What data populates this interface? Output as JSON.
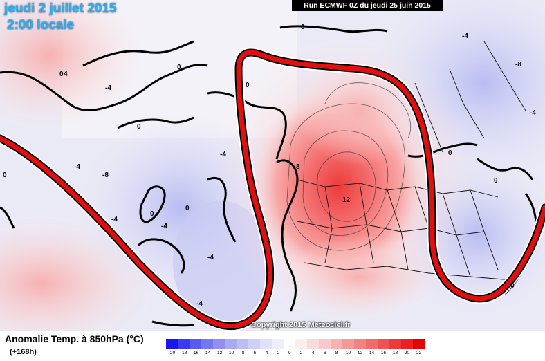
{
  "header": {
    "date_line": "jeudi 2 juillet 2015",
    "time_line": "2:00 locale",
    "run_info": "Run ECMWF 0Z du jeudi 25 juin 2015"
  },
  "map": {
    "contour_labels": [
      {
        "text": "0"
      },
      {
        "text": "0"
      },
      {
        "text": "0"
      },
      {
        "text": "0"
      },
      {
        "text": "0"
      },
      {
        "text": "0"
      },
      {
        "text": "0"
      },
      {
        "text": "-4"
      },
      {
        "text": "-4"
      },
      {
        "text": "-8"
      },
      {
        "text": "-4"
      },
      {
        "text": "-4"
      },
      {
        "text": "-4"
      },
      {
        "text": "-4"
      },
      {
        "text": "-4"
      },
      {
        "text": "8"
      },
      {
        "text": "12"
      },
      {
        "text": "-4"
      },
      {
        "text": "-8"
      },
      {
        "text": "0"
      },
      {
        "text": "0"
      },
      {
        "text": "0"
      },
      {
        "text": "4"
      },
      {
        "text": "0"
      },
      {
        "text": "-4"
      }
    ],
    "copyright": "Copyright 2015 Meteociel.fr"
  },
  "legend": {
    "title": "Anomalie Temp. à 850hPa (°C)",
    "subtitle": "(+168h)",
    "ticks": [
      "-20",
      "-18",
      "-16",
      "-14",
      "-12",
      "-10",
      "-8",
      "-6",
      "-4",
      "-2",
      "0",
      "2",
      "4",
      "6",
      "8",
      "10",
      "12",
      "14",
      "16",
      "18",
      "20",
      "22"
    ],
    "colors": [
      "#1a16f0",
      "#3c3aef",
      "#5a59f0",
      "#7776f1",
      "#9190f2",
      "#a9a9f4",
      "#bdbdf5",
      "#cfd0f7",
      "#dfe0fa",
      "#eeeefd",
      "#ffffff",
      "#fdeeee",
      "#fbdcdc",
      "#f9c8c8",
      "#f7b2b2",
      "#f59a9a",
      "#f38383",
      "#f16b6b",
      "#ef5252",
      "#ee3a3a",
      "#ec2020",
      "#e60000"
    ]
  }
}
